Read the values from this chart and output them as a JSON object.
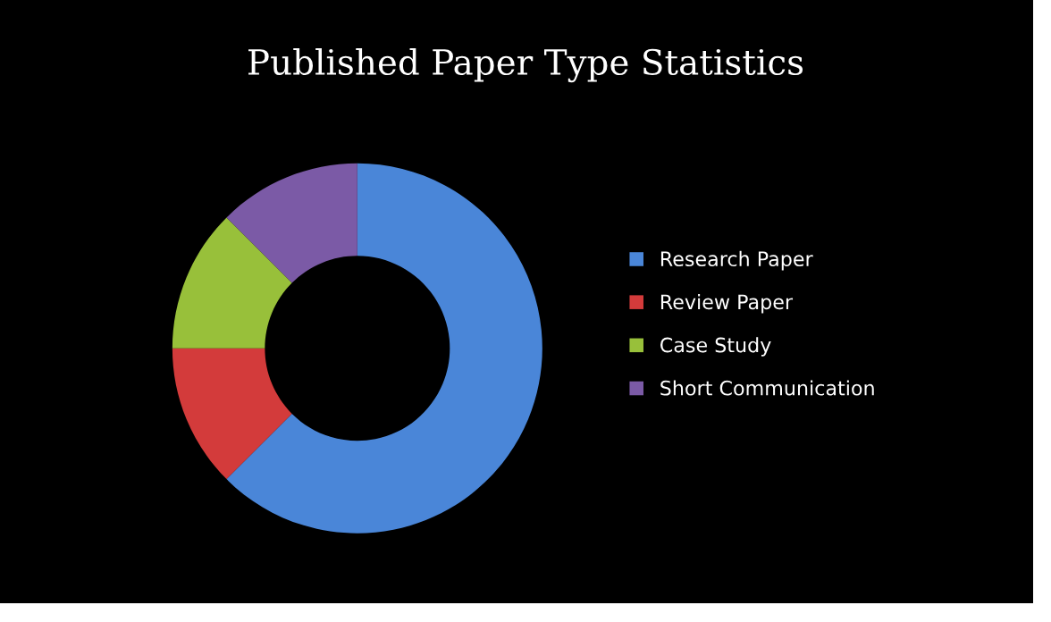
{
  "chart_data": {
    "type": "donut",
    "title": "Published Paper Type Statistics",
    "categories": [
      "Research Paper",
      "Review Paper",
      "Case Study",
      "Short Communication"
    ],
    "values": [
      62.5,
      12.5,
      12.5,
      12.5
    ],
    "colors": [
      "#4a86d8",
      "#d33b3b",
      "#98c03a",
      "#7b5aa6"
    ],
    "legend": "right"
  }
}
